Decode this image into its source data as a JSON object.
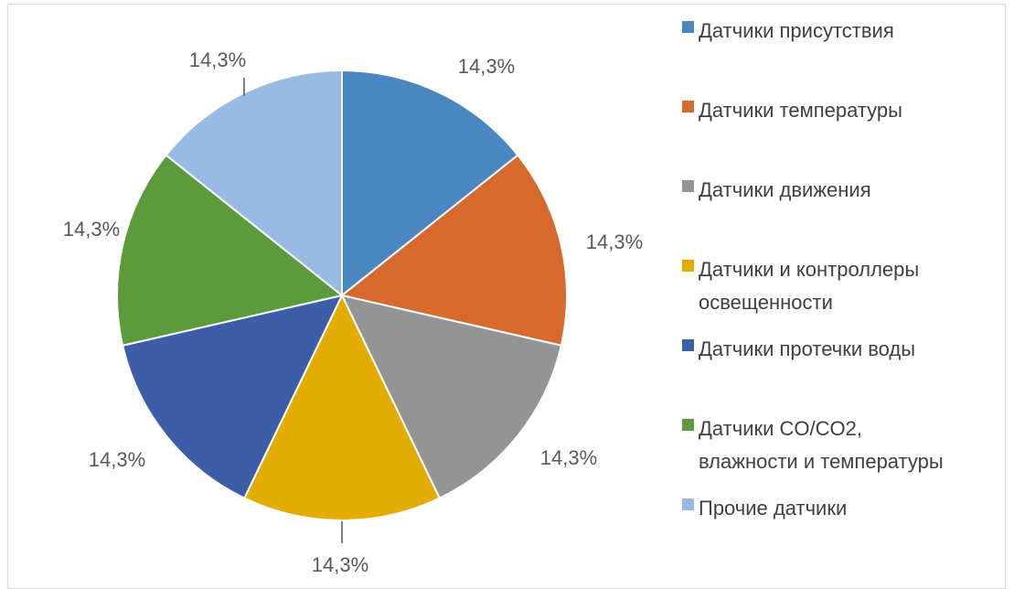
{
  "chart_data": {
    "type": "pie",
    "title": "",
    "legend_position": "right",
    "slices": [
      {
        "label": "Датчики присутствия",
        "value": 14.3,
        "data_label": "14,3%",
        "color": "#4a86c0"
      },
      {
        "label": "Датчики температуры",
        "value": 14.3,
        "data_label": "14,3%",
        "color": "#d7692c"
      },
      {
        "label": "Датчики движения",
        "value": 14.3,
        "data_label": "14,3%",
        "color": "#949494"
      },
      {
        "label": "Датчики и контроллеры освещенности",
        "legend_lines": [
          "Датчики и контроллеры",
          "освещенности"
        ],
        "value": 14.3,
        "data_label": "14,3%",
        "color": "#e5ac00"
      },
      {
        "label": "Датчики протечки воды",
        "value": 14.3,
        "data_label": "14,3%",
        "color": "#3c5ea9"
      },
      {
        "label": "Датчики CO/CO2, влажности и температуры",
        "legend_lines": [
          "Датчики CO/CO2,",
          "влажности и температуры"
        ],
        "value": 14.3,
        "data_label": "14,3%",
        "color": "#5c9b3b"
      },
      {
        "label": "Прочие датчики",
        "value": 14.3,
        "data_label": "14,3%",
        "color": "#99bae2"
      }
    ]
  }
}
